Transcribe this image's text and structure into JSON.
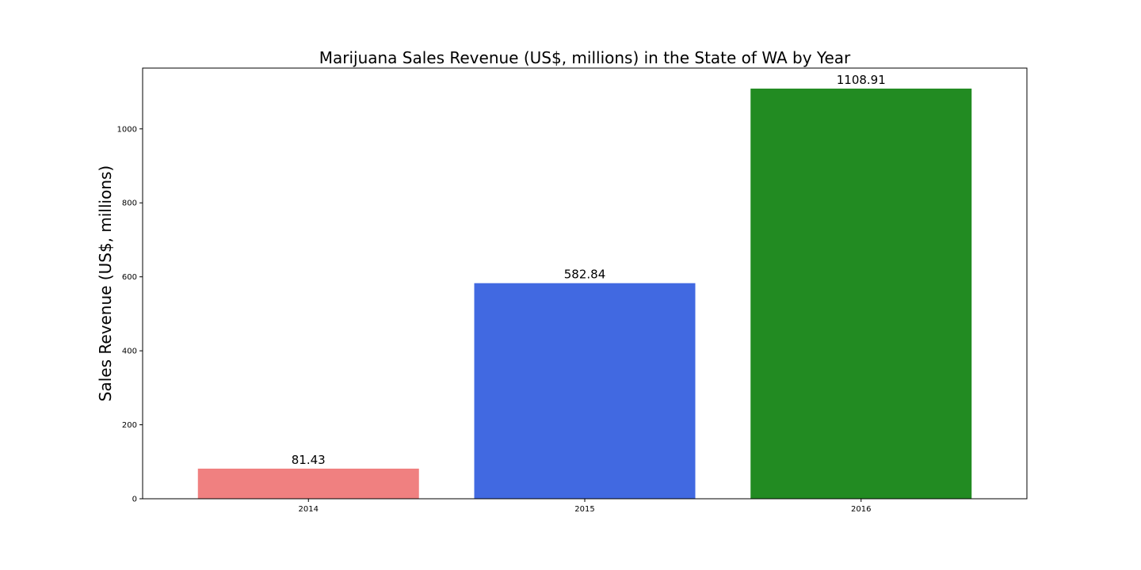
{
  "chart_data": {
    "type": "bar",
    "title": "Marijuana Sales Revenue (US$, millions) in the State of WA by Year",
    "xlabel": "",
    "ylabel": "Sales Revenue (US$, millions)",
    "categories": [
      "2014",
      "2015",
      "2016"
    ],
    "values": [
      81.43,
      582.84,
      1108.91
    ],
    "data_labels": [
      "81.43",
      "582.84",
      "1108.91"
    ],
    "bar_colors": [
      "#f08080",
      "#4169e1",
      "#228b22"
    ],
    "ylim": [
      0,
      1164.36
    ],
    "yticks": [
      0,
      200,
      400,
      600,
      800,
      1000
    ],
    "ytick_labels": [
      "0",
      "200",
      "400",
      "600",
      "800",
      "1000"
    ],
    "grid": false,
    "legend": "none"
  }
}
